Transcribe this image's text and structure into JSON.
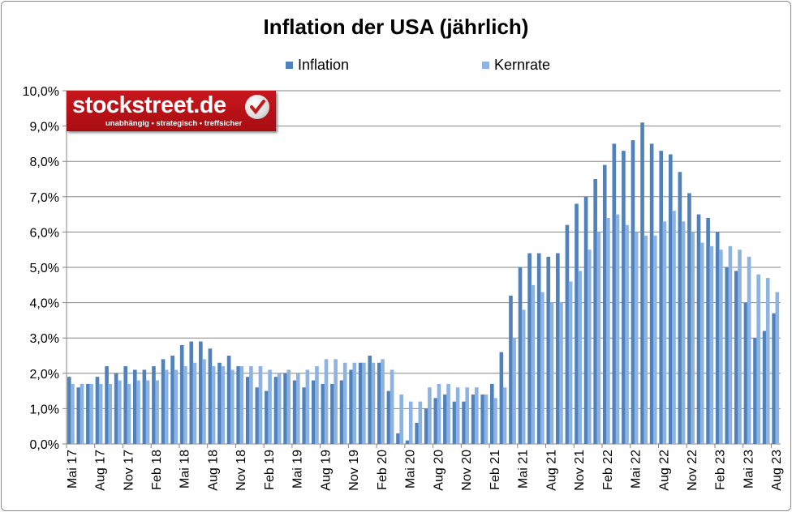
{
  "chart_data": {
    "type": "bar",
    "title": "Inflation der USA (jährlich)",
    "xlabel": "",
    "ylabel": "",
    "ylim": [
      0,
      10
    ],
    "yticks": [
      "0,0%",
      "1,0%",
      "2,0%",
      "3,0%",
      "4,0%",
      "5,0%",
      "6,0%",
      "7,0%",
      "8,0%",
      "9,0%",
      "10,0%"
    ],
    "grid": true,
    "legend": "top",
    "categories": [
      "Mai 17",
      "Jun 17",
      "Jul 17",
      "Aug 17",
      "Sep 17",
      "Okt 17",
      "Nov 17",
      "Dez 17",
      "Jan 18",
      "Feb 18",
      "Mrz 18",
      "Apr 18",
      "Mai 18",
      "Jun 18",
      "Jul 18",
      "Aug 18",
      "Sep 18",
      "Okt 18",
      "Nov 18",
      "Dez 18",
      "Jan 19",
      "Feb 19",
      "Mrz 19",
      "Apr 19",
      "Mai 19",
      "Jun 19",
      "Jul 19",
      "Aug 19",
      "Sep 19",
      "Okt 19",
      "Nov 19",
      "Dez 19",
      "Jan 20",
      "Feb 20",
      "Mrz 20",
      "Apr 20",
      "Mai 20",
      "Jun 20",
      "Jul 20",
      "Aug 20",
      "Sep 20",
      "Okt 20",
      "Nov 20",
      "Dez 20",
      "Jan 21",
      "Feb 21",
      "Mrz 21",
      "Apr 21",
      "Mai 21",
      "Jun 21",
      "Jul 21",
      "Aug 21",
      "Sep 21",
      "Okt 21",
      "Nov 21",
      "Dez 21",
      "Jan 22",
      "Feb 22",
      "Mrz 22",
      "Apr 22",
      "Mai 22",
      "Jun 22",
      "Jul 22",
      "Aug 22",
      "Sep 22",
      "Okt 22",
      "Nov 22",
      "Dez 22",
      "Jan 23",
      "Feb 23",
      "Mrz 23",
      "Apr 23",
      "Mai 23",
      "Jun 23",
      "Jul 23",
      "Aug 23"
    ],
    "xticklabels": [
      "Mai 17",
      "Aug 17",
      "Nov 17",
      "Feb 18",
      "Mai 18",
      "Aug 18",
      "Nov 18",
      "Feb 19",
      "Mai 19",
      "Aug 19",
      "Nov 19",
      "Feb 20",
      "Mai 20",
      "Aug 20",
      "Nov 20",
      "Feb 21",
      "Mai 21",
      "Aug 21",
      "Nov 21",
      "Feb 22",
      "Mai 22",
      "Aug 22",
      "Nov 22",
      "Feb 23",
      "Mai 23",
      "Aug 23"
    ],
    "series": [
      {
        "name": "Inflation",
        "color": "#4f81bd",
        "values": [
          1.9,
          1.6,
          1.7,
          1.9,
          2.2,
          2.0,
          2.2,
          2.1,
          2.1,
          2.2,
          2.4,
          2.5,
          2.8,
          2.9,
          2.9,
          2.7,
          2.3,
          2.5,
          2.2,
          1.9,
          1.6,
          1.5,
          1.9,
          2.0,
          1.8,
          1.6,
          1.8,
          1.7,
          1.7,
          1.8,
          2.1,
          2.3,
          2.5,
          2.3,
          1.5,
          0.3,
          0.1,
          0.6,
          1.0,
          1.3,
          1.4,
          1.2,
          1.2,
          1.4,
          1.4,
          1.7,
          2.6,
          4.2,
          5.0,
          5.4,
          5.4,
          5.3,
          5.4,
          6.2,
          6.8,
          7.0,
          7.5,
          7.9,
          8.5,
          8.3,
          8.6,
          9.1,
          8.5,
          8.3,
          8.2,
          7.7,
          7.1,
          6.5,
          6.4,
          6.0,
          5.0,
          4.9,
          4.0,
          3.0,
          3.2,
          3.7
        ]
      },
      {
        "name": "Kernrate",
        "color": "#8db3e2",
        "values": [
          1.7,
          1.7,
          1.7,
          1.7,
          1.7,
          1.8,
          1.7,
          1.8,
          1.8,
          1.8,
          2.1,
          2.1,
          2.2,
          2.3,
          2.4,
          2.2,
          2.2,
          2.1,
          2.2,
          2.2,
          2.2,
          2.1,
          2.0,
          2.1,
          2.0,
          2.1,
          2.2,
          2.4,
          2.4,
          2.3,
          2.3,
          2.3,
          2.3,
          2.4,
          2.1,
          1.4,
          1.2,
          1.2,
          1.6,
          1.7,
          1.7,
          1.6,
          1.6,
          1.6,
          1.4,
          1.3,
          1.6,
          3.0,
          3.8,
          4.5,
          4.3,
          4.0,
          4.0,
          4.6,
          4.9,
          5.5,
          6.0,
          6.4,
          6.5,
          6.2,
          6.0,
          5.9,
          5.9,
          6.3,
          6.6,
          6.3,
          6.0,
          5.7,
          5.6,
          5.5,
          5.6,
          5.5,
          5.3,
          4.8,
          4.7,
          4.3
        ]
      }
    ]
  },
  "logo": {
    "text": "stockstreet.de",
    "tagline": "unabhängig • strategisch • treffsicher"
  }
}
